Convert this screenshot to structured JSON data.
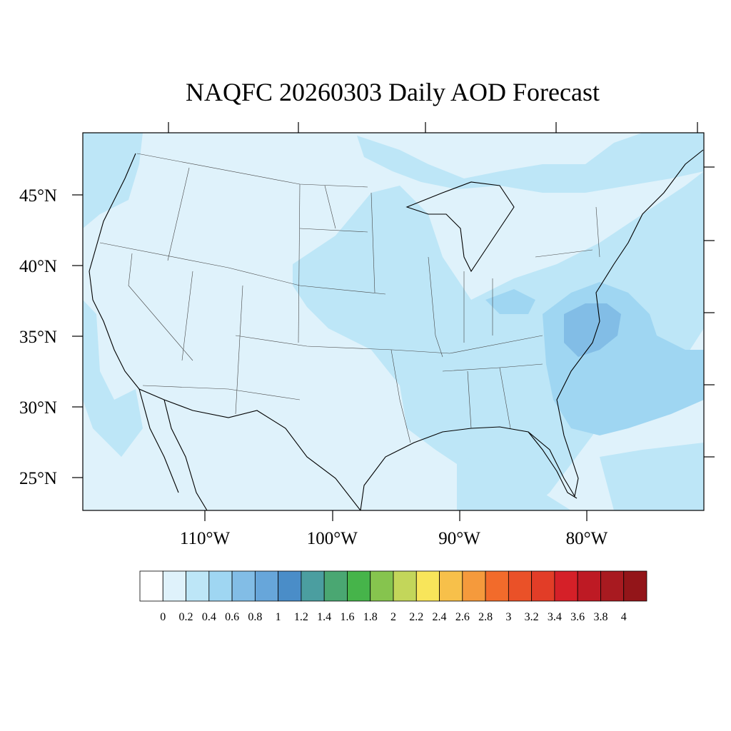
{
  "title": "NAQFC 20260303 Daily AOD Forecast",
  "map": {
    "lat_ticks": [
      {
        "value": 45,
        "label": "45°N"
      },
      {
        "value": 40,
        "label": "40°N"
      },
      {
        "value": 35,
        "label": "35°N"
      },
      {
        "value": 30,
        "label": "30°N"
      },
      {
        "value": 25,
        "label": "25°N"
      }
    ],
    "lon_ticks": [
      {
        "value": -110,
        "label": "110°W"
      },
      {
        "value": -100,
        "label": "100°W"
      },
      {
        "value": -90,
        "label": "90°W"
      },
      {
        "value": -80,
        "label": "80°W"
      }
    ],
    "background_color": "#dff2fb"
  },
  "colorbar": {
    "levels": [
      "0",
      "0.2",
      "0.4",
      "0.6",
      "0.8",
      "1",
      "1.2",
      "1.4",
      "1.6",
      "1.8",
      "2",
      "2.2",
      "2.4",
      "2.6",
      "2.8",
      "3",
      "3.2",
      "3.4",
      "3.6",
      "3.8",
      "4"
    ],
    "colors": [
      "#ffffff",
      "#dff2fb",
      "#bde6f7",
      "#9fd6f2",
      "#82bde6",
      "#67a6da",
      "#4a8dc8",
      "#4b9ea0",
      "#4aa772",
      "#46b44a",
      "#86c44e",
      "#c3d65a",
      "#f8e55a",
      "#f7c04a",
      "#f59a3c",
      "#f26b2b",
      "#ea5128",
      "#e23d27",
      "#d52028",
      "#be1a24",
      "#a81a20",
      "#931519"
    ]
  }
}
